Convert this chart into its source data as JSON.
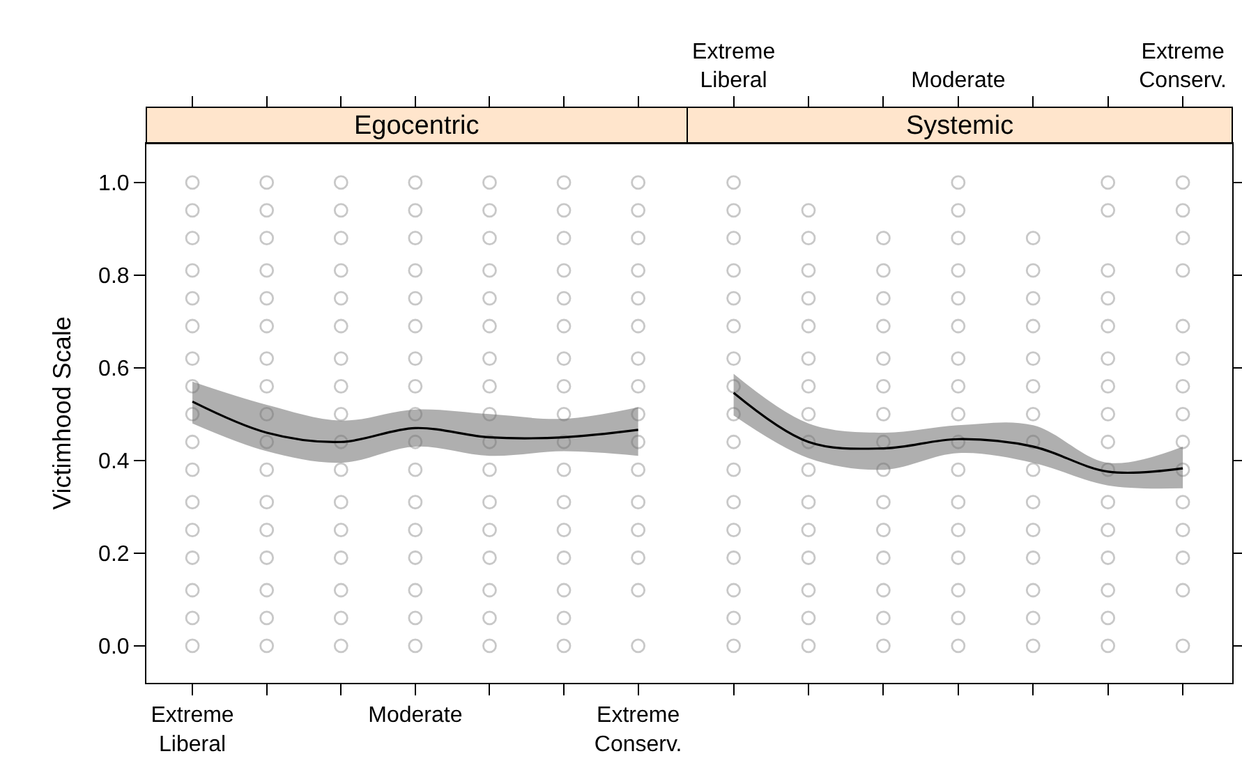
{
  "chart_data": [
    {
      "type": "scatter",
      "title": "Egocentric",
      "ylabel": "Victimhood Scale",
      "ylim": [
        -0.08,
        1.084
      ],
      "categories": [
        "Extreme Liberal",
        null,
        null,
        "Moderate",
        null,
        null,
        "Extreme Conserv."
      ],
      "yticks": [
        {
          "value": 0,
          "label": "0.0"
        },
        {
          "value": 0.2,
          "label": "0.2"
        },
        {
          "value": 0.4,
          "label": "0.4"
        },
        {
          "value": 0.6,
          "label": "0.6"
        },
        {
          "value": 0.8,
          "label": "0.8"
        },
        {
          "value": 1,
          "label": "1.0"
        }
      ],
      "marker": "circle",
      "series": [
        {
          "color": "#c8c8c8",
          "values": [
            0,
            0,
            0,
            0,
            0,
            0,
            0
          ]
        },
        {
          "color": "#c8c8c8",
          "values": [
            0.06,
            0.06,
            0.06,
            0.06,
            0.06,
            0.06,
            null
          ]
        },
        {
          "color": "#c8c8c8",
          "values": [
            0.12,
            0.12,
            0.12,
            0.12,
            0.12,
            0.12,
            0.12
          ]
        },
        {
          "color": "#c8c8c8",
          "values": [
            0.19,
            0.19,
            0.19,
            0.19,
            0.19,
            0.19,
            0.19
          ]
        },
        {
          "color": "#c8c8c8",
          "values": [
            0.25,
            0.25,
            0.25,
            0.25,
            0.25,
            0.25,
            0.25
          ]
        },
        {
          "color": "#c8c8c8",
          "values": [
            0.31,
            0.31,
            0.31,
            0.31,
            0.31,
            0.31,
            0.31
          ]
        },
        {
          "color": "#c8c8c8",
          "values": [
            0.38,
            0.38,
            0.38,
            0.38,
            0.38,
            0.38,
            0.38
          ]
        },
        {
          "color": "#c8c8c8",
          "values": [
            0.44,
            0.44,
            0.44,
            0.44,
            0.44,
            0.44,
            0.44
          ]
        },
        {
          "color": "#c8c8c8",
          "values": [
            0.5,
            0.5,
            0.5,
            0.5,
            0.5,
            0.5,
            0.5
          ]
        },
        {
          "color": "#c8c8c8",
          "values": [
            0.56,
            0.56,
            0.56,
            0.56,
            0.56,
            0.56,
            0.56
          ]
        },
        {
          "color": "#c8c8c8",
          "values": [
            0.62,
            0.62,
            0.62,
            0.62,
            0.62,
            0.62,
            0.62
          ]
        },
        {
          "color": "#c8c8c8",
          "values": [
            0.69,
            0.69,
            0.69,
            0.69,
            0.69,
            0.69,
            0.69
          ]
        },
        {
          "color": "#c8c8c8",
          "values": [
            0.75,
            0.75,
            0.75,
            0.75,
            0.75,
            0.75,
            0.75
          ]
        },
        {
          "color": "#c8c8c8",
          "values": [
            0.81,
            0.81,
            0.81,
            0.81,
            0.81,
            0.81,
            0.81
          ]
        },
        {
          "color": "#c8c8c8",
          "values": [
            0.88,
            0.88,
            0.88,
            0.88,
            0.88,
            0.88,
            0.88
          ]
        },
        {
          "color": "#c8c8c8",
          "values": [
            0.94,
            0.94,
            0.94,
            0.94,
            0.94,
            0.94,
            0.94
          ]
        },
        {
          "color": "#c8c8c8",
          "values": [
            1,
            1,
            1,
            1,
            1,
            1,
            1
          ]
        },
        {
          "type": "line",
          "marker": "none",
          "color": "#000000",
          "values": [
            0.527,
            0.46,
            0.44,
            0.47,
            0.45,
            0.45,
            0.466
          ],
          "lower": [
            0.48,
            0.42,
            0.395,
            0.43,
            0.41,
            0.42,
            0.41
          ],
          "upper": [
            0.57,
            0.52,
            0.486,
            0.51,
            0.5,
            0.49,
            0.515
          ]
        }
      ]
    },
    {
      "type": "scatter",
      "title": "Systemic",
      "ylim": [
        -0.08,
        1.084
      ],
      "categories": [
        "Extreme Liberal",
        null,
        null,
        "Moderate",
        null,
        null,
        "Extreme Conserv."
      ],
      "yticks": [
        0,
        0.2,
        0.4,
        0.6,
        0.8,
        1
      ],
      "tick_labels": "x",
      "marker": "circle",
      "series": [
        {
          "color": "#c8c8c8",
          "values": [
            0,
            0,
            0,
            0,
            0,
            0,
            0
          ]
        },
        {
          "color": "#c8c8c8",
          "values": [
            0.06,
            0.06,
            0.06,
            0.06,
            0.06,
            0.06,
            null
          ]
        },
        {
          "color": "#c8c8c8",
          "values": [
            0.12,
            0.12,
            0.12,
            0.12,
            0.12,
            0.12,
            0.12
          ]
        },
        {
          "color": "#c8c8c8",
          "values": [
            0.19,
            0.19,
            0.19,
            0.19,
            0.19,
            0.19,
            0.19
          ]
        },
        {
          "color": "#c8c8c8",
          "values": [
            0.25,
            0.25,
            0.25,
            0.25,
            0.25,
            0.25,
            0.25
          ]
        },
        {
          "color": "#c8c8c8",
          "values": [
            0.31,
            0.31,
            0.31,
            0.31,
            0.31,
            0.31,
            0.31
          ]
        },
        {
          "color": "#c8c8c8",
          "values": [
            0.38,
            0.38,
            0.38,
            0.38,
            0.38,
            0.38,
            0.38
          ]
        },
        {
          "color": "#c8c8c8",
          "values": [
            0.44,
            0.44,
            0.44,
            0.44,
            0.44,
            0.44,
            0.44
          ]
        },
        {
          "color": "#c8c8c8",
          "values": [
            0.5,
            0.5,
            0.5,
            0.5,
            0.5,
            0.5,
            0.5
          ]
        },
        {
          "color": "#c8c8c8",
          "values": [
            0.56,
            0.56,
            0.56,
            0.56,
            0.56,
            0.56,
            0.56
          ]
        },
        {
          "color": "#c8c8c8",
          "values": [
            0.62,
            0.62,
            0.62,
            0.62,
            0.62,
            0.62,
            0.62
          ]
        },
        {
          "color": "#c8c8c8",
          "values": [
            0.69,
            0.69,
            0.69,
            0.69,
            0.69,
            0.69,
            0.69
          ]
        },
        {
          "color": "#c8c8c8",
          "values": [
            0.75,
            0.75,
            0.75,
            0.75,
            0.75,
            0.75,
            null
          ]
        },
        {
          "color": "#c8c8c8",
          "values": [
            0.81,
            0.81,
            0.81,
            0.81,
            0.81,
            0.81,
            0.81
          ]
        },
        {
          "color": "#c8c8c8",
          "values": [
            0.88,
            0.88,
            0.88,
            0.88,
            0.88,
            null,
            0.88
          ]
        },
        {
          "color": "#c8c8c8",
          "values": [
            0.94,
            0.94,
            null,
            0.94,
            null,
            0.94,
            0.94
          ]
        },
        {
          "color": "#c8c8c8",
          "values": [
            1,
            null,
            null,
            1,
            null,
            1,
            1
          ]
        },
        {
          "type": "line",
          "marker": "none",
          "color": "#000000",
          "values": [
            0.546,
            0.44,
            0.426,
            0.446,
            0.43,
            0.376,
            0.383
          ],
          "lower": [
            0.497,
            0.405,
            0.38,
            0.416,
            0.395,
            0.346,
            0.34
          ],
          "upper": [
            0.587,
            0.48,
            0.46,
            0.476,
            0.476,
            0.395,
            0.43
          ]
        }
      ]
    }
  ]
}
